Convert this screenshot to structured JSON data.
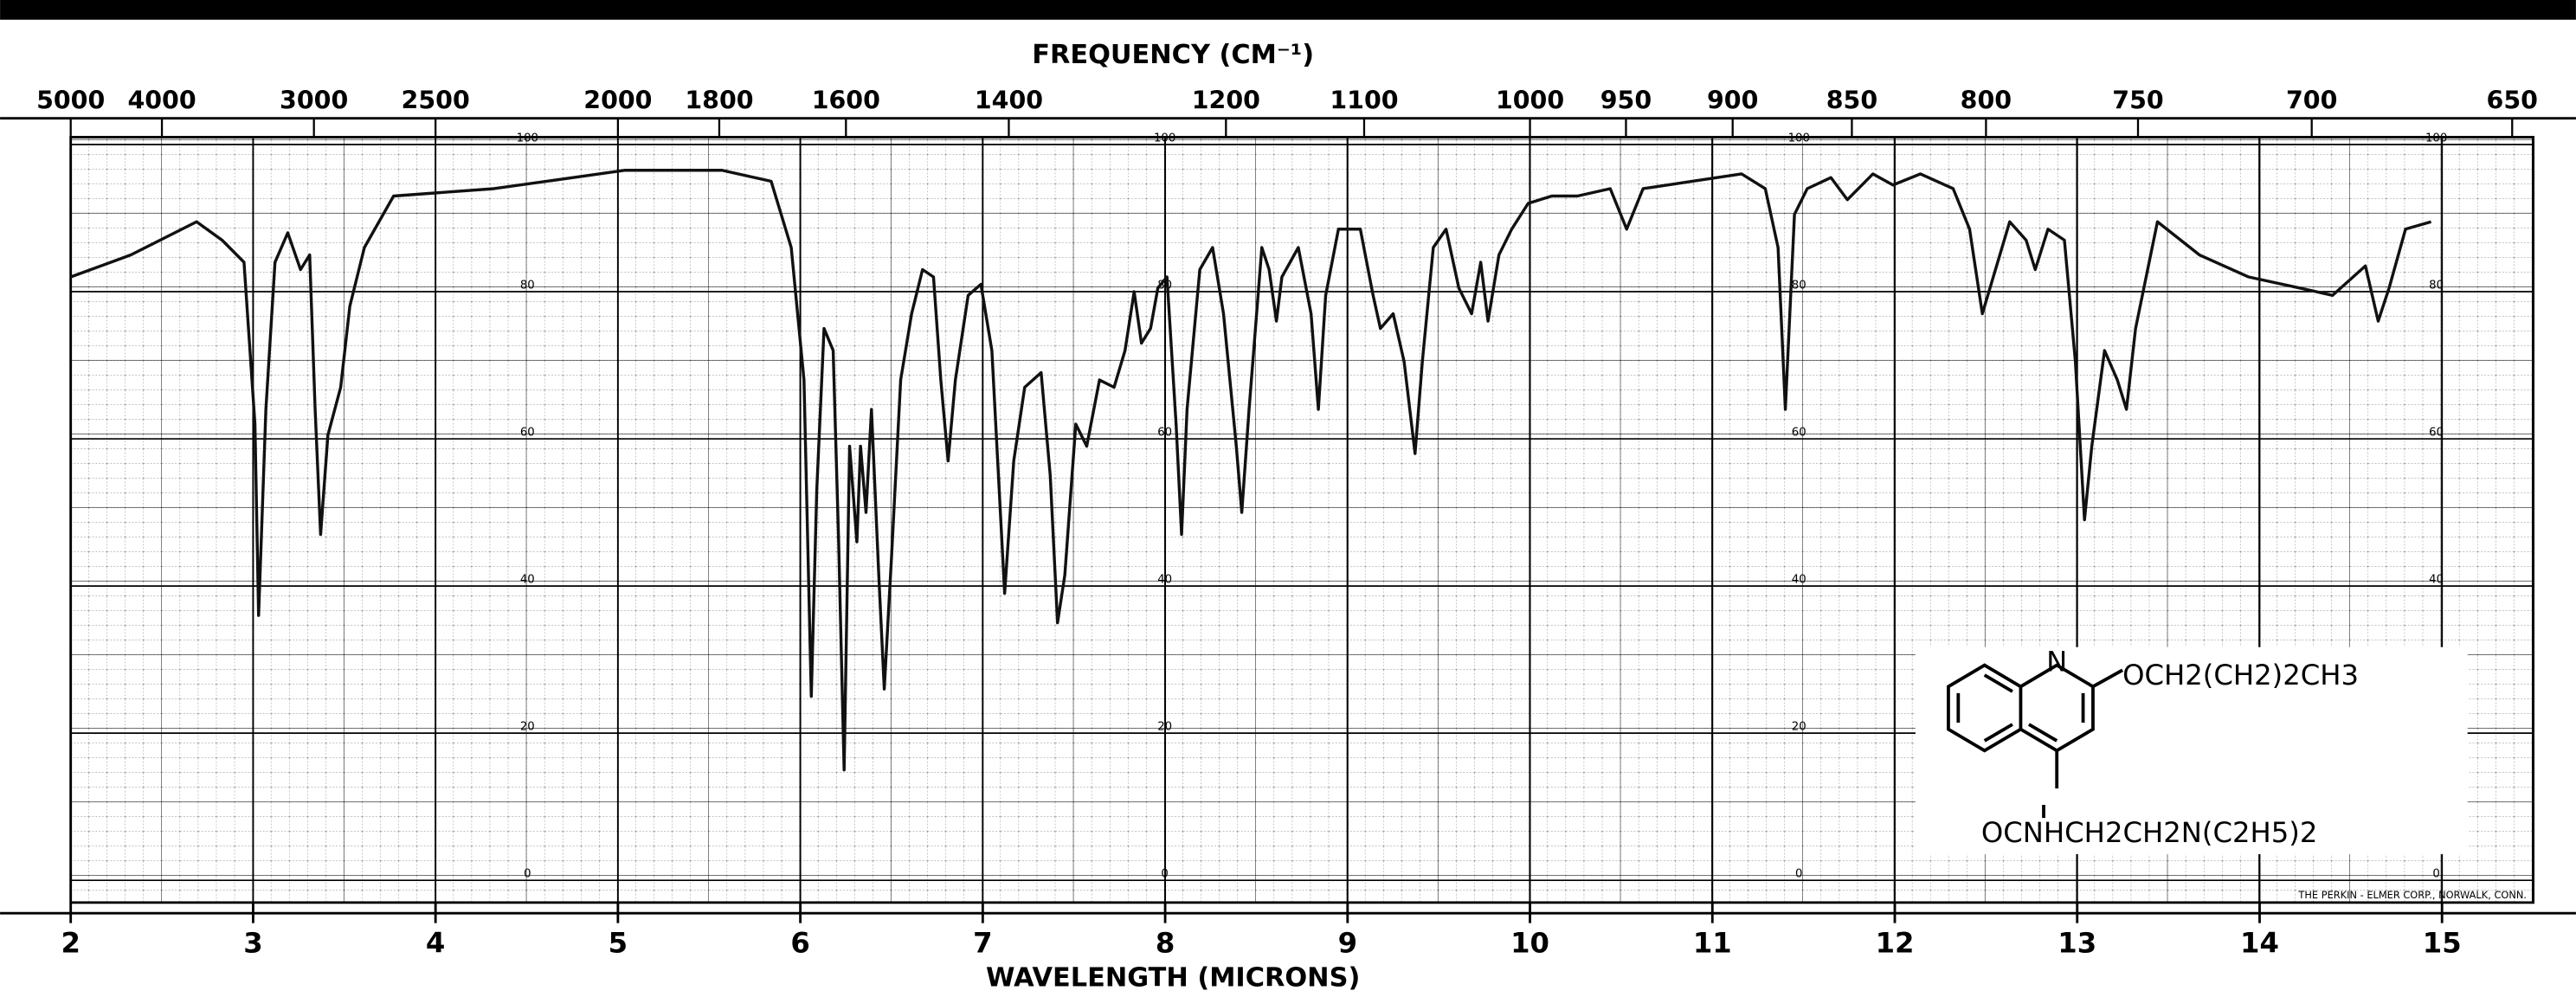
{
  "chart_data": {
    "type": "line",
    "x2label": "FREQUENCY (CM⁻¹)",
    "xlabel": "WAVELENGTH (MICRONS)",
    "x": [
      2.0,
      2.33,
      2.69,
      2.83,
      2.95,
      3.01,
      3.03,
      3.07,
      3.12,
      3.19,
      3.26,
      3.31,
      3.34,
      3.37,
      3.41,
      3.48,
      3.53,
      3.61,
      3.77,
      4.32,
      5.04,
      5.57,
      5.84,
      5.95,
      6.02,
      6.06,
      6.09,
      6.13,
      6.18,
      6.21,
      6.24,
      6.27,
      6.31,
      6.33,
      6.36,
      6.39,
      6.43,
      6.46,
      6.5,
      6.55,
      6.61,
      6.67,
      6.73,
      6.77,
      6.81,
      6.85,
      6.92,
      6.99,
      7.05,
      7.12,
      7.17,
      7.23,
      7.32,
      7.37,
      7.41,
      7.45,
      7.51,
      7.57,
      7.64,
      7.72,
      7.78,
      7.83,
      7.87,
      7.92,
      7.96,
      8.01,
      8.06,
      8.09,
      8.12,
      8.19,
      8.26,
      8.32,
      8.39,
      8.42,
      8.46,
      8.53,
      8.57,
      8.61,
      8.64,
      8.73,
      8.8,
      8.84,
      8.88,
      8.95,
      9.07,
      9.14,
      9.18,
      9.25,
      9.31,
      9.37,
      9.41,
      9.47,
      9.54,
      9.61,
      9.68,
      9.73,
      9.77,
      9.83,
      9.9,
      9.99,
      10.12,
      10.26,
      10.44,
      10.53,
      10.62,
      10.89,
      11.16,
      11.29,
      11.36,
      11.4,
      11.45,
      11.52,
      11.65,
      11.74,
      11.88,
      11.99,
      12.14,
      12.32,
      12.41,
      12.48,
      12.54,
      12.63,
      12.72,
      12.77,
      12.84,
      12.93,
      12.99,
      13.04,
      13.08,
      13.15,
      13.22,
      13.27,
      13.32,
      13.44,
      13.67,
      13.94,
      14.22,
      14.4,
      14.58,
      14.65,
      14.71,
      14.8,
      14.94
    ],
    "values": [
      82,
      85,
      89.5,
      87,
      84,
      62,
      36,
      64,
      84,
      88,
      83,
      85,
      64,
      47,
      60.5,
      67,
      78,
      86,
      93,
      94,
      96.5,
      96.5,
      95,
      86,
      68,
      25,
      53,
      75,
      72,
      46,
      15,
      59,
      46,
      59,
      50,
      64,
      41.5,
      26,
      44,
      68,
      77,
      83,
      82,
      68,
      57,
      68,
      79.5,
      81,
      72,
      39,
      57,
      67,
      69,
      55,
      35,
      41.5,
      62,
      59,
      68,
      67,
      72,
      80,
      73,
      75,
      80.5,
      82,
      62,
      47,
      64,
      83,
      86,
      77,
      59,
      50,
      64,
      86,
      83,
      76,
      82,
      86,
      77,
      64,
      79.5,
      88.5,
      88.5,
      79.5,
      75,
      77,
      70.5,
      58,
      70.5,
      86,
      88.5,
      80.5,
      77,
      84,
      76,
      85,
      88.5,
      92,
      93,
      93,
      94,
      88.5,
      94,
      95,
      96,
      94,
      86,
      64,
      90.5,
      94,
      95.5,
      92.5,
      96,
      94.5,
      96,
      94,
      88.5,
      77,
      82,
      89.5,
      87,
      83,
      88.5,
      87,
      70.5,
      49,
      59,
      72,
      68,
      64,
      75,
      89.5,
      85,
      82,
      80.5,
      79.5,
      83.5,
      76,
      80.5,
      88.5,
      89.5
    ],
    "color": "#111111",
    "xlim": [
      2,
      15.5
    ],
    "ylim": [
      -3,
      101
    ],
    "xticks": [
      2,
      3,
      4,
      5,
      6,
      7,
      8,
      9,
      10,
      11,
      12,
      13,
      14,
      15
    ],
    "x2ticks": [
      5000,
      4000,
      3000,
      2500,
      2000,
      1800,
      1600,
      1400,
      1200,
      1100,
      1000,
      950,
      900,
      850,
      800,
      750,
      700,
      650
    ],
    "yticks": [
      0,
      20,
      40,
      60,
      80,
      100
    ],
    "grid": true,
    "annotations": [
      "N",
      "OCH2(CH2)2CH3",
      "OCNHCH2CH2N(C2H5)2",
      "THE PERKIN - ELMER CORP., NORWALK, CONN."
    ]
  }
}
